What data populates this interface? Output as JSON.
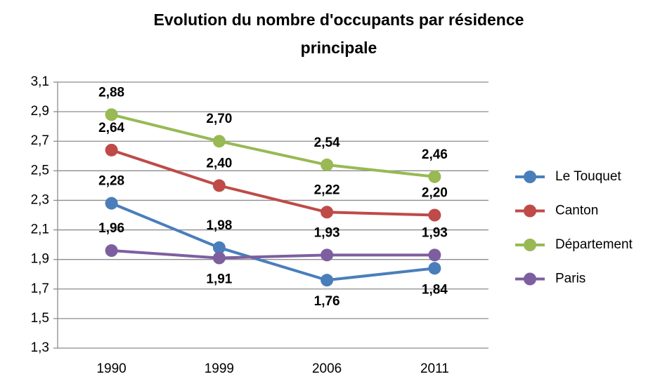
{
  "chart_data": {
    "type": "line",
    "title": "Evolution du nombre d'occupants par résidence principale",
    "categories": [
      "1990",
      "1999",
      "2006",
      "2011"
    ],
    "series": [
      {
        "name": "Le Touquet",
        "color": "#4a7ebb",
        "values": [
          2.28,
          1.98,
          1.76,
          1.84
        ],
        "value_labels": [
          "2,28",
          "1,98",
          "1,76",
          "1,84"
        ]
      },
      {
        "name": "Canton",
        "color": "#be4b48",
        "values": [
          2.64,
          2.4,
          2.22,
          2.2
        ],
        "value_labels": [
          "2,64",
          "2,40",
          "2,22",
          "2,20"
        ]
      },
      {
        "name": "Département",
        "color": "#98b954",
        "values": [
          2.88,
          2.7,
          2.54,
          2.46
        ],
        "value_labels": [
          "2,88",
          "2,70",
          "2,54",
          "2,46"
        ]
      },
      {
        "name": "Paris",
        "color": "#7d5fa0",
        "values": [
          1.96,
          1.91,
          1.93,
          1.93
        ],
        "value_labels": [
          "1,96",
          "1,91",
          "1,93",
          "1,93"
        ]
      }
    ],
    "ylim": [
      1.3,
      3.1
    ],
    "yticks": [
      {
        "value": 1.3,
        "label": "1,3"
      },
      {
        "value": 1.5,
        "label": "1,5"
      },
      {
        "value": 1.7,
        "label": "1,7"
      },
      {
        "value": 1.9,
        "label": "1,9"
      },
      {
        "value": 2.1,
        "label": "2,1"
      },
      {
        "value": 2.3,
        "label": "2,3"
      },
      {
        "value": 2.5,
        "label": "2,5"
      },
      {
        "value": 2.7,
        "label": "2,7"
      },
      {
        "value": 2.9,
        "label": "2,9"
      },
      {
        "value": 3.1,
        "label": "3,1"
      }
    ],
    "grid": true,
    "legend": "right"
  }
}
